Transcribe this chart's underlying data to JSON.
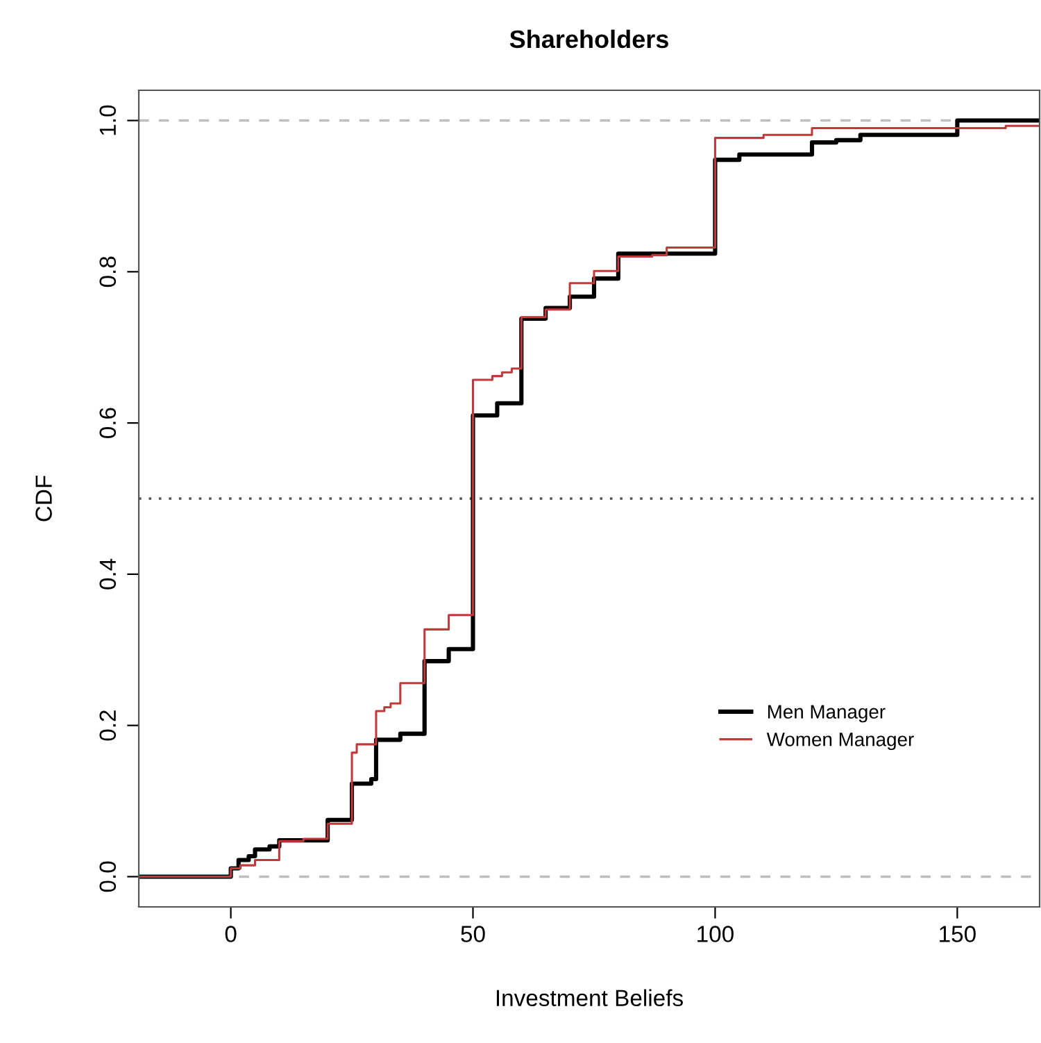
{
  "chart_data": {
    "type": "step",
    "title": "Shareholders",
    "xlabel": "Investment Beliefs",
    "ylabel": "CDF",
    "xlim": [
      -19,
      167
    ],
    "ylim": [
      -0.04,
      1.04
    ],
    "xticks": [
      0,
      50,
      100,
      150
    ],
    "yticks": [
      {
        "value": 0,
        "label": "0.0"
      },
      {
        "value": 0.2,
        "label": "0.2"
      },
      {
        "value": 0.4,
        "label": "0.4"
      },
      {
        "value": 0.6,
        "label": "0.6"
      },
      {
        "value": 0.8,
        "label": "0.8"
      },
      {
        "value": 1,
        "label": "1.0"
      }
    ],
    "grid": false,
    "legend": "center right",
    "series": [
      {
        "name": "Men Manager",
        "color": "#000000",
        "x": [
          -19,
          0,
          1.6,
          3.7,
          5,
          8,
          10,
          20,
          25,
          29,
          30,
          35,
          40,
          45,
          50,
          55,
          60,
          65,
          70,
          75,
          80,
          100,
          105,
          120,
          125,
          130,
          150,
          167
        ],
        "values": [
          0,
          0.011,
          0.022,
          0.027,
          0.036,
          0.04,
          0.048,
          0.075,
          0.123,
          0.129,
          0.181,
          0.189,
          0.285,
          0.301,
          0.61,
          0.626,
          0.738,
          0.752,
          0.767,
          0.791,
          0.824,
          0.948,
          0.955,
          0.971,
          0.974,
          0.981,
          1.0,
          1.0
        ]
      },
      {
        "name": "Women Manager",
        "color": "#c0393b",
        "x": [
          -19,
          0,
          2,
          5,
          10,
          15,
          20,
          25,
          26,
          30,
          31.7,
          33,
          35,
          40,
          45,
          50,
          54,
          56,
          58,
          60,
          65,
          70,
          75,
          80,
          87,
          90,
          100,
          110,
          120,
          160,
          167
        ],
        "values": [
          0,
          0.011,
          0.015,
          0.022,
          0.047,
          0.05,
          0.07,
          0.164,
          0.175,
          0.219,
          0.224,
          0.229,
          0.256,
          0.327,
          0.346,
          0.657,
          0.662,
          0.667,
          0.672,
          0.74,
          0.75,
          0.785,
          0.801,
          0.82,
          0.822,
          0.832,
          0.977,
          0.981,
          0.99,
          0.993,
          0.993
        ]
      }
    ],
    "ref_lines": [
      {
        "axis": "y",
        "value": 0,
        "color": "#bebebe",
        "line_style": "dashed"
      },
      {
        "axis": "y",
        "value": 1,
        "color": "#bebebe",
        "line_style": "dashed"
      },
      {
        "axis": "y",
        "value": 0.5,
        "color": "#555555",
        "line_style": "dotted"
      }
    ]
  }
}
